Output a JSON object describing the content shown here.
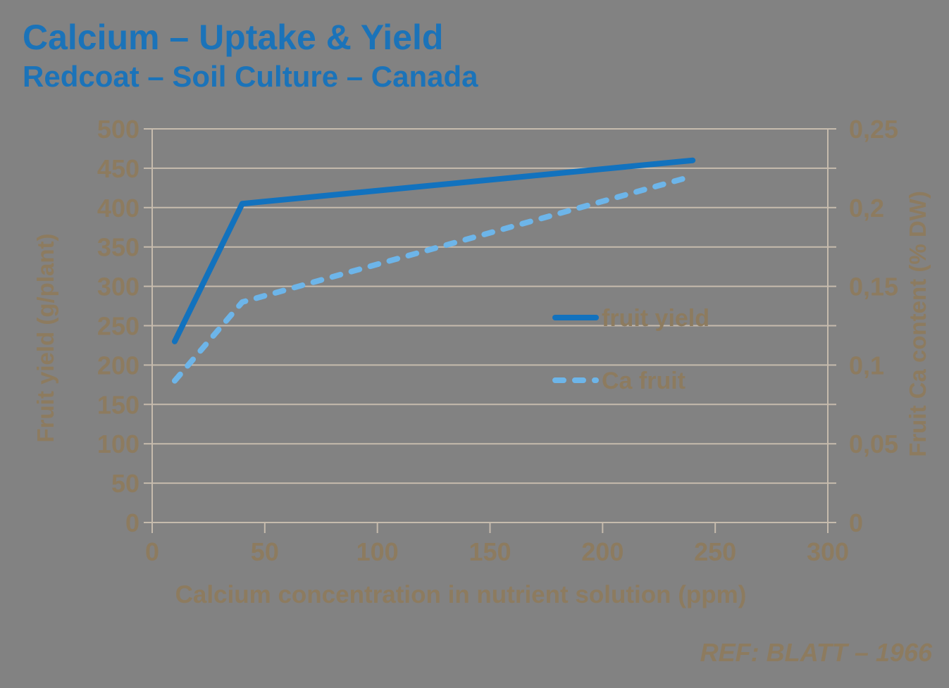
{
  "header": {
    "title": "Calcium – Uptake & Yield",
    "subtitle": "Redcoat – Soil Culture – Canada"
  },
  "footer": {
    "reference": "REF: BLATT – 1966"
  },
  "colors": {
    "background": "#828282",
    "title_text": "#1B73B9",
    "axis_text": "#8D7B5F",
    "gridline": "#C6BBAD",
    "fruit_yield_line": "#1272BE",
    "ca_fruit_line": "#6DB5E9"
  },
  "chart_data": {
    "type": "line",
    "title": "Calcium – Uptake & Yield",
    "subtitle": "Redcoat – Soil Culture – Canada",
    "x": [
      10,
      40,
      240
    ],
    "series": [
      {
        "name": "fruit yield",
        "axis": "left",
        "line_style": "solid",
        "color": "#1272BE",
        "values": [
          230,
          405,
          460
        ]
      },
      {
        "name": "Ca fruit",
        "axis": "right",
        "line_style": "dashed",
        "color": "#6DB5E9",
        "values": [
          0.09,
          0.14,
          0.22
        ]
      }
    ],
    "xlabel": "Calcium concentration in nutrient solution (ppm)",
    "xlim": [
      0,
      300
    ],
    "x_ticks": [
      0,
      50,
      100,
      150,
      200,
      250,
      300
    ],
    "x_tick_labels": [
      "0",
      "50",
      "100",
      "150",
      "200",
      "250",
      "300"
    ],
    "left_axis": {
      "label": "Fruit yield (g/plant)",
      "lim": [
        0,
        500
      ],
      "ticks": [
        0,
        50,
        100,
        150,
        200,
        250,
        300,
        350,
        400,
        450,
        500
      ],
      "tick_labels": [
        "0",
        "50",
        "100",
        "150",
        "200",
        "250",
        "300",
        "350",
        "400",
        "450",
        "500"
      ]
    },
    "right_axis": {
      "label": "Fruit Ca content (% DW)",
      "lim": [
        0,
        0.25
      ],
      "ticks": [
        0,
        0.05,
        0.1,
        0.15,
        0.2,
        0.25
      ],
      "tick_labels": [
        "0",
        "0,05",
        "0,1",
        "0,15",
        "0,2",
        "0,25"
      ]
    },
    "grid": "horizontal",
    "gridline_step_left_units": 50,
    "legend": {
      "position": "middle-right",
      "entries": [
        "fruit yield",
        "Ca fruit"
      ]
    }
  }
}
